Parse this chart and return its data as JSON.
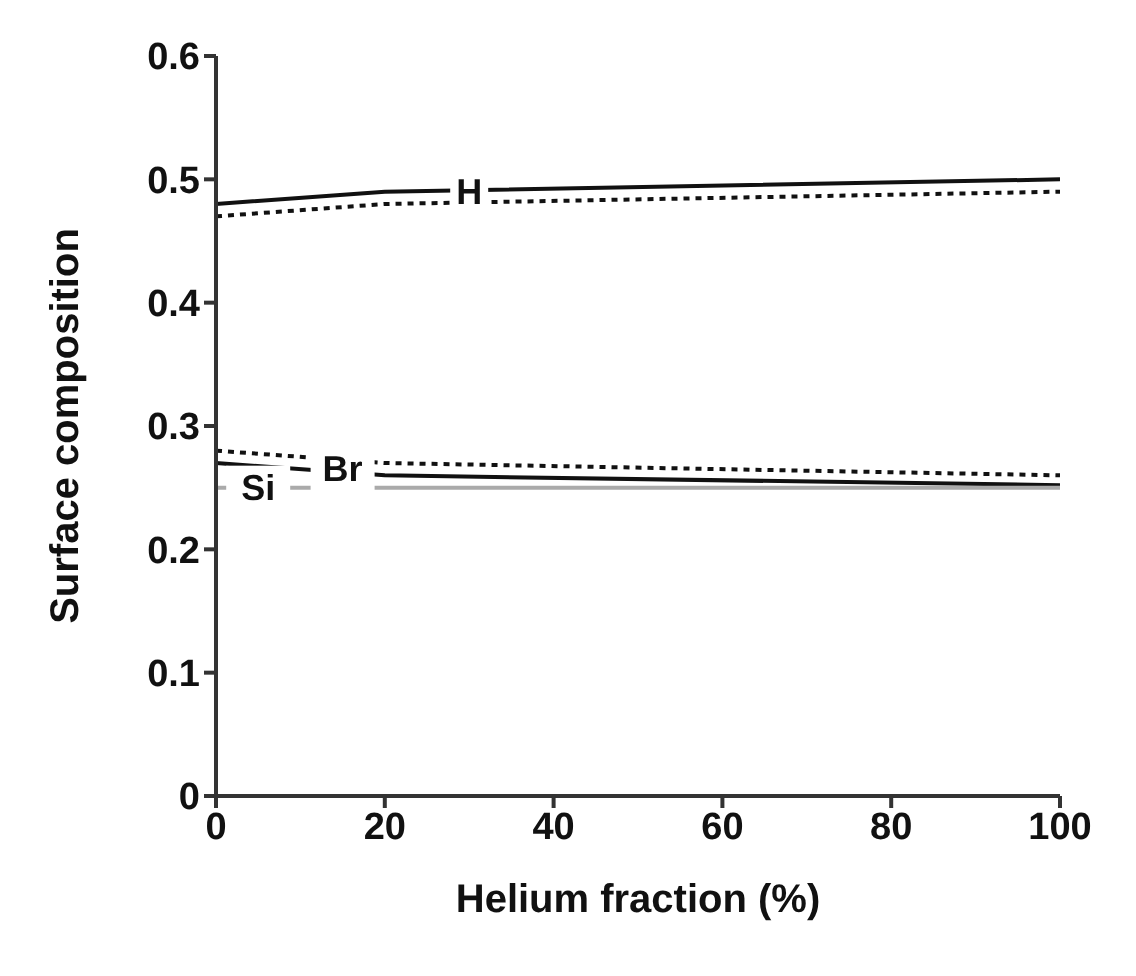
{
  "chart_data": {
    "type": "line",
    "xlabel": "Helium fraction (%)",
    "ylabel": "Surface composition",
    "xlim": [
      0,
      100
    ],
    "ylim": [
      0,
      0.6
    ],
    "xticks": [
      0,
      20,
      40,
      60,
      80,
      100
    ],
    "yticks": [
      0,
      0.1,
      0.2,
      0.3,
      0.4,
      0.5,
      0.6
    ],
    "grid": false,
    "marker": "none",
    "series": [
      {
        "color": "#111111",
        "line_style": "solid",
        "x": [
          0,
          20,
          100
        ],
        "values": [
          0.48,
          0.49,
          0.5
        ]
      },
      {
        "color": "#111111",
        "line_style": "dotted",
        "x": [
          0,
          20,
          100
        ],
        "values": [
          0.47,
          0.48,
          0.49
        ]
      },
      {
        "color": "#111111",
        "line_style": "dotted",
        "x": [
          0,
          20,
          100
        ],
        "values": [
          0.28,
          0.27,
          0.26
        ]
      },
      {
        "color": "#111111",
        "line_style": "solid",
        "x": [
          0,
          20,
          100
        ],
        "values": [
          0.27,
          0.26,
          0.252
        ]
      },
      {
        "color": "#aaaaaa",
        "line_style": "solid",
        "x": [
          0,
          100
        ],
        "values": [
          0.25,
          0.25
        ]
      }
    ],
    "annotations": [
      {
        "text": "H",
        "x": 30,
        "y": 0.49
      },
      {
        "text": "Br",
        "x": 15,
        "y": 0.265
      },
      {
        "text": "Si",
        "x": 5,
        "y": 0.25
      }
    ]
  }
}
